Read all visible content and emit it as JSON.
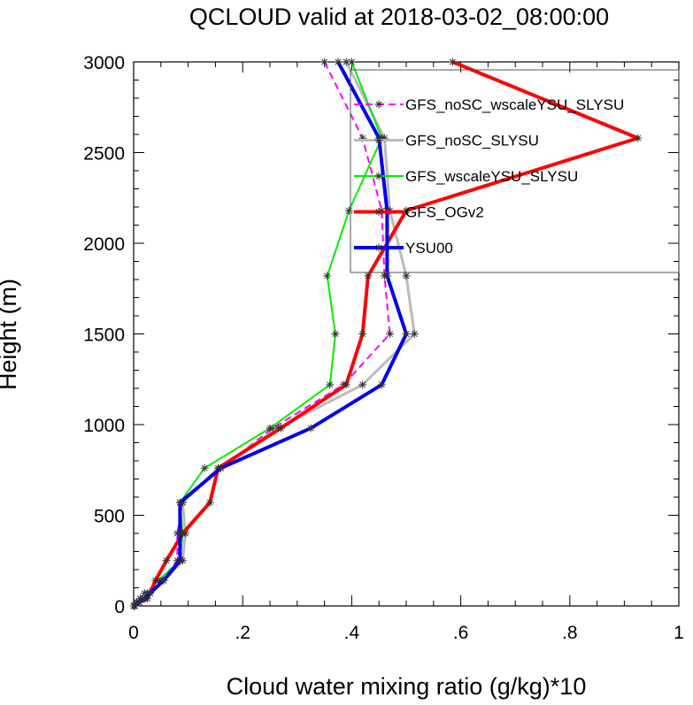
{
  "chart_data": {
    "type": "line",
    "title": "QCLOUD valid at 2018-03-02_08:00:00",
    "xlabel": "Cloud water mixing ratio (g/kg)*10",
    "ylabel": "Height (m)",
    "xlim": [
      0,
      1
    ],
    "ylim": [
      0,
      3000
    ],
    "x_ticks": [
      0,
      0.2,
      0.4,
      0.6,
      0.8,
      1
    ],
    "x_tick_labels": [
      "0",
      ".2",
      ".4",
      ".6",
      ".8",
      "1"
    ],
    "y_ticks": [
      0,
      500,
      1000,
      1500,
      2000,
      2500,
      3000
    ],
    "y_tick_labels": [
      "0",
      "500",
      "1000",
      "1500",
      "2000",
      "2500",
      "3000"
    ],
    "legend_position": "top-right",
    "heights": [
      0,
      20,
      40,
      70,
      140,
      250,
      400,
      570,
      760,
      980,
      1220,
      1500,
      1820,
      2180,
      2580,
      3000
    ],
    "series": [
      {
        "name": "GFS_noSC_wscaleYSU_SLYSU",
        "color": "#ff00ff",
        "dash": "8,5",
        "width": 2,
        "values": [
          0.0,
          0.005,
          0.012,
          0.02,
          0.05,
          0.08,
          0.08,
          0.09,
          0.16,
          0.255,
          0.385,
          0.47,
          0.46,
          0.455,
          0.42,
          0.35
        ]
      },
      {
        "name": "GFS_noSC_SLYSU",
        "color": "#bbbbbb",
        "dash": "",
        "width": 3,
        "values": [
          0.002,
          0.01,
          0.018,
          0.03,
          0.055,
          0.09,
          0.095,
          0.09,
          0.155,
          0.265,
          0.42,
          0.515,
          0.5,
          0.47,
          0.46,
          0.39
        ]
      },
      {
        "name": "GFS_wscaleYSU_SLYSU",
        "color": "#00ee00",
        "dash": "",
        "width": 2,
        "values": [
          0.001,
          0.006,
          0.012,
          0.025,
          0.045,
          0.085,
          0.09,
          0.085,
          0.13,
          0.25,
          0.36,
          0.37,
          0.355,
          0.395,
          0.455,
          0.4
        ]
      },
      {
        "name": "GFS_OGv2",
        "color": "#ff0000",
        "dash": "",
        "width": 4,
        "values": [
          0.001,
          0.01,
          0.025,
          0.03,
          0.04,
          0.06,
          0.09,
          0.14,
          0.155,
          0.27,
          0.39,
          0.42,
          0.43,
          0.5,
          0.925,
          0.585
        ]
      },
      {
        "name": "YSU00",
        "color": "#0000ee",
        "dash": "",
        "width": 4,
        "values": [
          0.002,
          0.01,
          0.02,
          0.03,
          0.055,
          0.085,
          0.085,
          0.085,
          0.16,
          0.325,
          0.455,
          0.5,
          0.465,
          0.465,
          0.45,
          0.375
        ]
      }
    ]
  }
}
